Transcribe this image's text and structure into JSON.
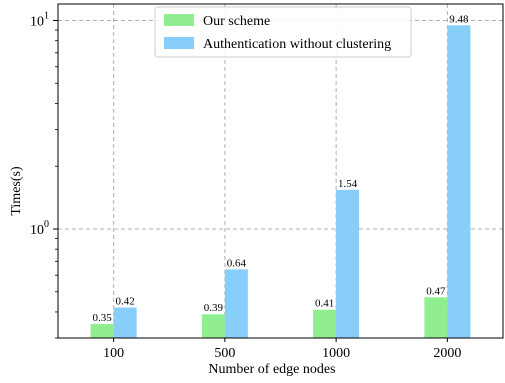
{
  "chart_data": {
    "type": "bar",
    "categories": [
      "100",
      "500",
      "1000",
      "2000"
    ],
    "series": [
      {
        "name": "Our scheme",
        "values": [
          0.35,
          0.39,
          0.41,
          0.47
        ],
        "color": "#90ee90",
        "labels": [
          "0.35",
          "0.39",
          "0.41",
          "0.47"
        ]
      },
      {
        "name": "Authentication without clustering",
        "values": [
          0.42,
          0.64,
          1.54,
          9.48
        ],
        "color": "#87cefa",
        "labels": [
          "0.42",
          "0.64",
          "1.54",
          "9.48"
        ]
      }
    ],
    "title": "",
    "xlabel": "Number of edge nodes",
    "ylabel": "Times(s)",
    "yscale": "log",
    "ylim": [
      0.3,
      12
    ],
    "major_ticks": [
      {
        "value": 1,
        "base": "10",
        "exp": "0"
      },
      {
        "value": 10,
        "base": "10",
        "exp": "1"
      }
    ],
    "grid": true,
    "legend_position": "top-center"
  }
}
